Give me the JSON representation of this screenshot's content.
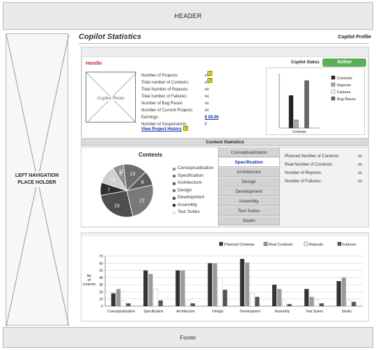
{
  "header": {
    "label": "HEADER"
  },
  "left_nav": {
    "label": "LEFT NAVIGATION PLACE HOLDER"
  },
  "footer": {
    "label": "Footer"
  },
  "page": {
    "title": "Copilot Statistics",
    "profile_link": "Copilot Profile"
  },
  "profile": {
    "handle": "Handle",
    "photo_caption": "Copilot Photo",
    "stats": [
      {
        "label": "Number of Projects:",
        "value": "xx"
      },
      {
        "label": "Total number of Contests:",
        "value": "xx"
      },
      {
        "label": "Total Number of Reposts:",
        "value": "xx"
      },
      {
        "label": "Total number of Failures:",
        "value": "xx"
      },
      {
        "label": "Number of Bug Races",
        "value": "xx"
      },
      {
        "label": "Number of Current Projects:",
        "value": "xx"
      },
      {
        "label": "Earnings:",
        "value": "$ 00.00"
      },
      {
        "label": "Number of Suspensions:",
        "value": "0"
      }
    ],
    "view_history": "View Project History",
    "badges": [
      "1",
      "2",
      "3"
    ]
  },
  "copilot_status": {
    "label": "Copilot Status",
    "value": "Active"
  },
  "contest_section": {
    "title": "Contest Statistics"
  },
  "tabs": [
    {
      "label": "Conceptualization",
      "active": false
    },
    {
      "label": "Specification",
      "active": true
    },
    {
      "label": "Architecture",
      "active": false
    },
    {
      "label": "Design",
      "active": false
    },
    {
      "label": "Development",
      "active": false
    },
    {
      "label": "Assembly",
      "active": false
    },
    {
      "label": "Test Suites",
      "active": false
    },
    {
      "label": "Studio",
      "active": false
    }
  ],
  "contest_stats": [
    {
      "label": "Planned Number of Contests:",
      "value": "xx"
    },
    {
      "label": "Real Number of Contests:",
      "value": "xx"
    },
    {
      "label": "Number of Reposts:",
      "value": "xx"
    },
    {
      "label": "Number of Failures:",
      "value": "xx"
    }
  ],
  "chart_data": [
    {
      "type": "bar",
      "categories": [
        "Contests"
      ],
      "series": [
        {
          "name": "Contests",
          "values": [
            48
          ],
          "color": "#222222"
        },
        {
          "name": "Reposts",
          "values": [
            12
          ],
          "color": "#aaaaaa"
        },
        {
          "name": "Failures",
          "values": [
            0
          ],
          "color": "#ffffff"
        },
        {
          "name": "Bug Races",
          "values": [
            70
          ],
          "color": "#666666"
        }
      ],
      "ylim": [
        0,
        80
      ],
      "legend": "right"
    },
    {
      "type": "pie",
      "title": "Contests",
      "labels": [
        "Conceptualization",
        "Specification",
        "Architecture",
        "Design",
        "Development",
        "Assembly",
        "Test Suites"
      ],
      "values": [
        6,
        13,
        8,
        22,
        23,
        7,
        10
      ],
      "slice_labels": [
        "6",
        "13",
        "8",
        "22",
        "23",
        "7",
        "10"
      ],
      "extra_slice_label": "11",
      "colors": [
        "#8e8e8e",
        "#6e6e6e",
        "#5d5d5d",
        "#7a7a7a",
        "#4e4e4e",
        "#2f2f2f",
        "#cfcfcf"
      ],
      "legend_colors": [
        "#8e8e8e",
        "#6e6e6e",
        "#5d5d5d",
        "#7a7a7a",
        "#4e4e4e",
        "#2f2f2f",
        "#e0e0e0"
      ],
      "legend_labels": [
        "Conceptualization",
        "Specification",
        "Architecture",
        "Design",
        "Development",
        "Assembly",
        "Test Suites"
      ]
    },
    {
      "type": "bar",
      "categories": [
        "Conceptualization",
        "Specification",
        "Architecture",
        "Design",
        "Development",
        "Assembly",
        "Test Suites",
        "Studio"
      ],
      "series": [
        {
          "name": "Planned Contests",
          "values": [
            18,
            50,
            50,
            60,
            66,
            30,
            24,
            35
          ],
          "color": "#333333"
        },
        {
          "name": "Real Contests",
          "values": [
            24,
            45,
            50,
            60,
            61,
            24,
            13,
            40
          ],
          "color": "#9b9b9b"
        },
        {
          "name": "Reposts",
          "values": [
            7,
            24,
            8,
            40,
            18,
            8,
            9,
            8
          ],
          "color": "#ffffff"
        },
        {
          "name": "Failures",
          "values": [
            4,
            8,
            4,
            23,
            13,
            3,
            4,
            6
          ],
          "color": "#555555"
        }
      ],
      "ylabel": "No of contests",
      "ylim": [
        0,
        70
      ],
      "yticks": [
        0,
        10,
        20,
        30,
        40,
        50,
        60,
        70
      ],
      "legend": "top"
    }
  ]
}
